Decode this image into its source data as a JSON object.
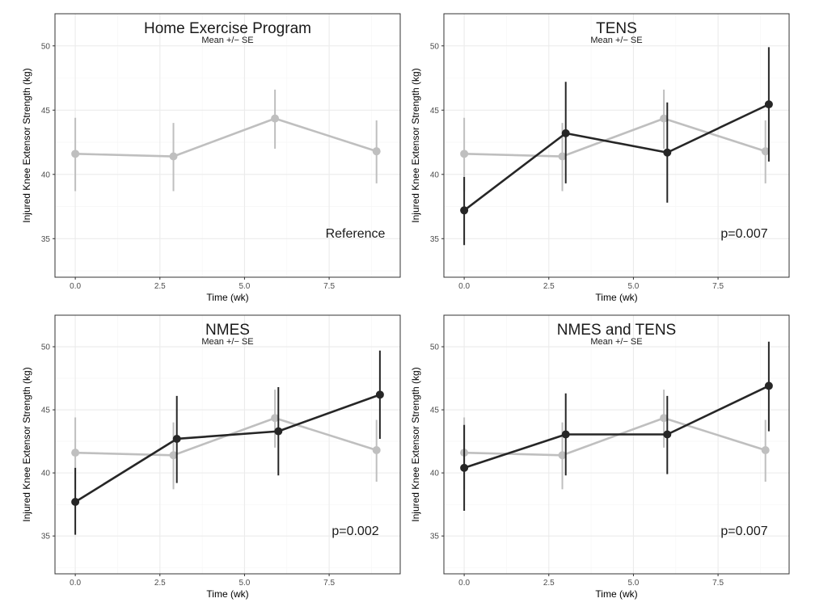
{
  "chart_data": [
    {
      "type": "line",
      "title": "Home Exercise Program",
      "subtitle": "Mean +/− SE",
      "xlabel": "Time (wk)",
      "ylabel": "Injured Knee Extensor Strength (kg)",
      "xlim": [
        -0.6,
        9.6
      ],
      "ylim": [
        32,
        52.5
      ],
      "x_ticks": [
        "0.0",
        "2.5",
        "5.0",
        "7.5"
      ],
      "y_ticks": [
        "35",
        "40",
        "45",
        "50"
      ],
      "annotation": "Reference",
      "grid": true,
      "series": [
        {
          "color": "#bfbfbf",
          "x": [
            0,
            2.9,
            5.9,
            8.9
          ],
          "y": [
            41.6,
            41.4,
            44.35,
            41.8
          ],
          "se_low": [
            38.7,
            38.7,
            42.0,
            39.3
          ],
          "se_high": [
            44.4,
            44.0,
            46.6,
            44.2
          ]
        }
      ]
    },
    {
      "type": "line",
      "title": "TENS",
      "subtitle": "Mean +/− SE",
      "xlabel": "Time (wk)",
      "ylabel": "Injured Knee Extensor Strength (kg)",
      "xlim": [
        -0.6,
        9.6
      ],
      "ylim": [
        32,
        52.5
      ],
      "x_ticks": [
        "0.0",
        "2.5",
        "5.0",
        "7.5"
      ],
      "y_ticks": [
        "35",
        "40",
        "45",
        "50"
      ],
      "annotation": "p=0.007",
      "grid": true,
      "series": [
        {
          "color": "#bfbfbf",
          "x": [
            0,
            2.9,
            5.9,
            8.9
          ],
          "y": [
            41.6,
            41.4,
            44.35,
            41.8
          ],
          "se_low": [
            38.7,
            38.7,
            42.0,
            39.3
          ],
          "se_high": [
            44.4,
            44.0,
            46.6,
            44.2
          ]
        },
        {
          "color": "#262626",
          "x": [
            0,
            3.0,
            6.0,
            9.0
          ],
          "y": [
            37.2,
            43.2,
            41.7,
            45.45
          ],
          "se_low": [
            34.5,
            39.3,
            37.8,
            41.0
          ],
          "se_high": [
            39.8,
            47.2,
            45.6,
            49.9
          ]
        }
      ]
    },
    {
      "type": "line",
      "title": "NMES",
      "subtitle": "Mean +/− SE",
      "xlabel": "Time (wk)",
      "ylabel": "Injured Knee Extensor Strength (kg)",
      "xlim": [
        -0.6,
        9.6
      ],
      "ylim": [
        32,
        52.5
      ],
      "x_ticks": [
        "0.0",
        "2.5",
        "5.0",
        "7.5"
      ],
      "y_ticks": [
        "35",
        "40",
        "45",
        "50"
      ],
      "annotation": "p=0.002",
      "grid": true,
      "series": [
        {
          "color": "#bfbfbf",
          "x": [
            0,
            2.9,
            5.9,
            8.9
          ],
          "y": [
            41.6,
            41.4,
            44.35,
            41.8
          ],
          "se_low": [
            38.7,
            38.7,
            42.0,
            39.3
          ],
          "se_high": [
            44.4,
            44.0,
            46.6,
            44.2
          ]
        },
        {
          "color": "#262626",
          "x": [
            0,
            3.0,
            6.0,
            9.0
          ],
          "y": [
            37.7,
            42.7,
            43.3,
            46.2
          ],
          "se_low": [
            35.1,
            39.2,
            39.8,
            42.7
          ],
          "se_high": [
            40.4,
            46.1,
            46.8,
            49.7
          ]
        }
      ]
    },
    {
      "type": "line",
      "title": "NMES and TENS",
      "subtitle": "Mean +/− SE",
      "xlabel": "Time (wk)",
      "ylabel": "Injured Knee Extensor Strength (kg)",
      "xlim": [
        -0.6,
        9.6
      ],
      "ylim": [
        32,
        52.5
      ],
      "x_ticks": [
        "0.0",
        "2.5",
        "5.0",
        "7.5"
      ],
      "y_ticks": [
        "35",
        "40",
        "45",
        "50"
      ],
      "annotation": "p=0.007",
      "grid": true,
      "series": [
        {
          "color": "#bfbfbf",
          "x": [
            0,
            2.9,
            5.9,
            8.9
          ],
          "y": [
            41.6,
            41.4,
            44.35,
            41.8
          ],
          "se_low": [
            38.7,
            38.7,
            42.0,
            39.3
          ],
          "se_high": [
            44.4,
            44.0,
            46.6,
            44.2
          ]
        },
        {
          "color": "#262626",
          "x": [
            0,
            3.0,
            6.0,
            9.0
          ],
          "y": [
            40.4,
            43.05,
            43.05,
            46.9
          ],
          "se_low": [
            37.0,
            39.8,
            39.9,
            43.3
          ],
          "se_high": [
            43.8,
            46.3,
            46.1,
            50.4
          ]
        }
      ]
    }
  ]
}
